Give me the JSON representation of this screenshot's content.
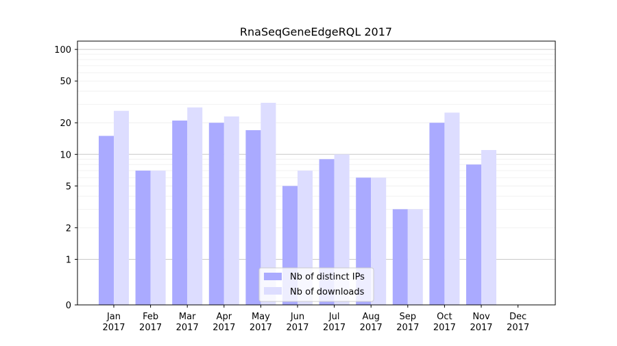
{
  "chart_data": {
    "type": "bar",
    "title": "RnaSeqGeneEdgeRQL 2017",
    "xlabel": "",
    "ylabel": "",
    "y_scale": "symlog",
    "ylim": [
      0,
      120
    ],
    "y_ticks": [
      0,
      1,
      2,
      5,
      10,
      20,
      50,
      100
    ],
    "grid": true,
    "legend_position": "lower center",
    "categories": [
      [
        "Jan",
        "2017"
      ],
      [
        "Feb",
        "2017"
      ],
      [
        "Mar",
        "2017"
      ],
      [
        "Apr",
        "2017"
      ],
      [
        "May",
        "2017"
      ],
      [
        "Jun",
        "2017"
      ],
      [
        "Jul",
        "2017"
      ],
      [
        "Aug",
        "2017"
      ],
      [
        "Sep",
        "2017"
      ],
      [
        "Oct",
        "2017"
      ],
      [
        "Nov",
        "2017"
      ],
      [
        "Dec",
        "2017"
      ]
    ],
    "series": [
      {
        "name": "Nb of distinct IPs",
        "color": "#aaaaff",
        "values": [
          15,
          7,
          21,
          20,
          17,
          5,
          9,
          6,
          3,
          20,
          8,
          0
        ]
      },
      {
        "name": "Nb of downloads",
        "color": "#ddddff",
        "values": [
          26,
          7,
          28,
          23,
          31,
          7,
          10,
          6,
          3,
          25,
          11,
          0
        ]
      }
    ]
  }
}
